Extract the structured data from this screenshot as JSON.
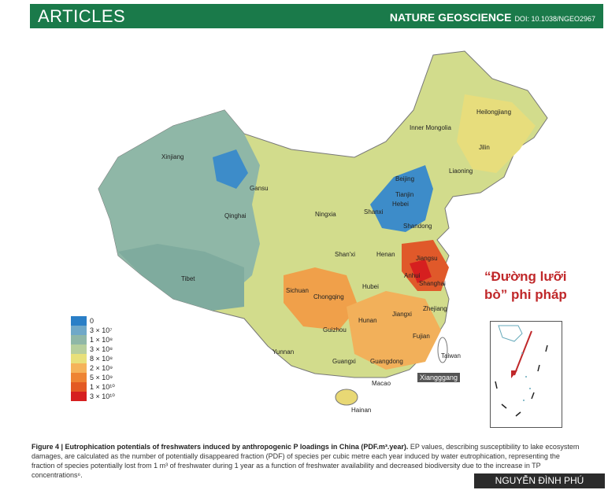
{
  "header": {
    "section": "ARTICLES",
    "journal": "NATURE GEOSCIENCE",
    "doi": "DOI: 10.1038/NGEO2967"
  },
  "map": {
    "places": [
      "Heilongjiang",
      "Inner Mongolia",
      "Jilin",
      "Liaoning",
      "Xinjiang",
      "Gansu",
      "Beijing",
      "Tianjin",
      "Hebei",
      "Ningxia",
      "Shanxi",
      "Shandong",
      "Qinghai",
      "Shan'xi",
      "Henan",
      "Jiangsu",
      "Tibet",
      "Anhui",
      "Shanghai",
      "Sichuan",
      "Hubei",
      "Chongqing",
      "Zhejiang",
      "Hunan",
      "Jiangxi",
      "Guizhou",
      "Fujian",
      "Yunnan",
      "Guangxi",
      "Guangdong",
      "Taiwan",
      "Macao",
      "Hainan"
    ],
    "xisha_label": "Xiangggang"
  },
  "legend": {
    "labels": [
      "0",
      "3 × 10⁷",
      "1 × 10⁸",
      "3 × 10⁸",
      "8 × 10⁸",
      "2 × 10⁹",
      "5 × 10⁹",
      "1 × 10¹⁰",
      "3 × 10¹⁰"
    ],
    "colors": [
      "#2a7fc7",
      "#6fa8c8",
      "#8fb7a7",
      "#b7cf9d",
      "#e8e07a",
      "#f5b35a",
      "#ee8433",
      "#e35a23",
      "#d61f1f"
    ]
  },
  "annotation": {
    "line1": "“Đường lưỡi",
    "line2": "bò” phi pháp"
  },
  "caption": {
    "bold": "Figure 4 | Eutrophication potentials of freshwaters induced by anthropogenic P loadings in China (PDF.m³.year).",
    "text": " EP values, describing susceptibility to lake ecosystem damages, are calculated as the number of potentially disappeared fraction (PDF) of species per cubic metre each year induced by water eutrophication, representing the fraction of species potentially lost from 1 m³ of freshwater during 1 year as a function of freshwater availability and decreased biodiversity due to the increase in TP concentrations⁶."
  },
  "credit": "NGUYỄN ĐÌNH PHÚ"
}
